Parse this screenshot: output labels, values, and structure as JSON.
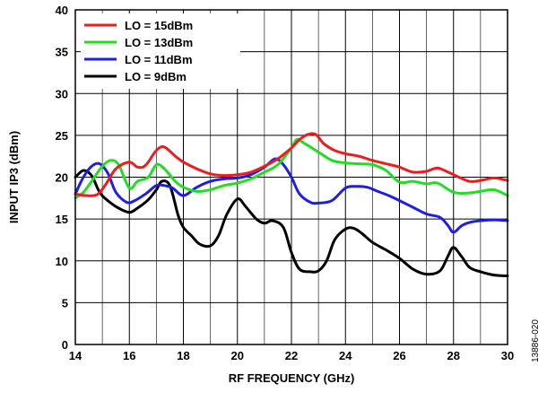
{
  "figure_id": "13886-020",
  "chart_data": {
    "type": "line",
    "title": "",
    "xlabel": "RF FREQUENCY (GHz)",
    "ylabel": "INPUT IP3 (dBm)",
    "xlim": [
      14,
      30
    ],
    "ylim": [
      0,
      40
    ],
    "xticks": [
      14,
      16,
      18,
      20,
      22,
      24,
      26,
      28,
      30
    ],
    "yticks": [
      0,
      5,
      10,
      15,
      20,
      25,
      30,
      35,
      40
    ],
    "grid": true,
    "legend_position": "top-left",
    "series": [
      {
        "name": "LO = 15dBm",
        "color": "#ee1c1c",
        "x": [
          14,
          14.4,
          14.8,
          15.1,
          15.5,
          16,
          16.3,
          16.6,
          17,
          17.3,
          17.7,
          18,
          18.5,
          19,
          19.5,
          20,
          20.5,
          21,
          21.5,
          22,
          22.3,
          22.6,
          22.9,
          23.2,
          23.6,
          24,
          24.5,
          25,
          25.5,
          26,
          26.5,
          27,
          27.4,
          27.8,
          28.2,
          28.6,
          29,
          29.5,
          30
        ],
        "y": [
          18,
          17.8,
          17.9,
          19,
          21,
          21.8,
          21.2,
          21.4,
          23.2,
          23.6,
          22.5,
          21.8,
          21,
          20.4,
          20.2,
          20.3,
          20.6,
          21.3,
          22.2,
          23.5,
          24.5,
          25.1,
          25.1,
          24,
          23.2,
          22.8,
          22.5,
          22,
          21.6,
          21.2,
          20.6,
          20.7,
          21.1,
          20.6,
          20,
          19.5,
          19.6,
          19.9,
          19.6
        ]
      },
      {
        "name": "LO = 13dBm",
        "color": "#22dd22",
        "x": [
          14,
          14.3,
          14.6,
          15,
          15.3,
          15.6,
          16,
          16.3,
          16.7,
          17,
          17.3,
          17.7,
          18,
          18.5,
          19,
          19.5,
          20,
          20.5,
          21,
          21.5,
          22,
          22.2,
          22.5,
          23,
          23.5,
          24,
          24.5,
          25,
          25.5,
          26,
          26.5,
          27,
          27.4,
          28,
          28.5,
          29,
          29.5,
          30
        ],
        "y": [
          17.5,
          18.2,
          19.5,
          21.3,
          22,
          21.5,
          18.7,
          19.5,
          20,
          21.5,
          21,
          19.5,
          18.8,
          18.3,
          18.5,
          19,
          19.3,
          19.8,
          20.6,
          21.5,
          23.5,
          24.5,
          24,
          23,
          22,
          21.7,
          21.6,
          21.5,
          20.8,
          19.4,
          19.5,
          19.2,
          19.3,
          18.2,
          18.1,
          18.3,
          18.5,
          17.8
        ]
      },
      {
        "name": "LO = 11dBm",
        "color": "#1e1ee6",
        "x": [
          14,
          14.3,
          14.6,
          14.9,
          15.2,
          15.5,
          15.9,
          16.2,
          16.6,
          17,
          17.3,
          17.6,
          18,
          18.5,
          19,
          19.5,
          20,
          20.5,
          21,
          21.4,
          21.7,
          22,
          22.3,
          22.7,
          23,
          23.5,
          24,
          24.4,
          24.8,
          25.2,
          25.6,
          26,
          26.5,
          27,
          27.5,
          27.8,
          28,
          28.3,
          28.6,
          29,
          29.5,
          30
        ],
        "y": [
          18,
          20,
          21.3,
          21.6,
          20.5,
          18.2,
          17,
          17.2,
          18,
          19,
          19,
          18.7,
          17.8,
          18.8,
          19.5,
          19.8,
          19.9,
          20.3,
          21.2,
          22.2,
          21.5,
          20,
          18,
          17,
          16.9,
          17.2,
          18.7,
          18.9,
          18.8,
          18.3,
          17.8,
          17.2,
          16.4,
          15.6,
          15.2,
          14.2,
          13.4,
          14.2,
          14.6,
          14.8,
          14.9,
          14.8
        ]
      },
      {
        "name": "LO = 9dBm",
        "color": "#000000",
        "x": [
          14,
          14.3,
          14.6,
          14.9,
          15.2,
          15.6,
          16,
          16.3,
          16.7,
          17,
          17.2,
          17.5,
          17.8,
          18,
          18.3,
          18.6,
          19,
          19.3,
          19.6,
          20,
          20.3,
          20.7,
          21,
          21.3,
          21.7,
          22,
          22.3,
          22.7,
          23,
          23.3,
          23.6,
          24,
          24.3,
          24.6,
          25,
          25.5,
          26,
          26.5,
          27,
          27.5,
          27.8,
          28,
          28.3,
          28.6,
          29,
          29.5,
          30
        ],
        "y": [
          20,
          20.8,
          20.2,
          18.2,
          17.2,
          16.3,
          15.8,
          16.3,
          17.3,
          18.5,
          19.5,
          19,
          15.5,
          14,
          13,
          12,
          11.8,
          13,
          15.5,
          17.4,
          16.5,
          15,
          14.5,
          14.8,
          14,
          11,
          9,
          8.7,
          8.8,
          10,
          12.5,
          13.8,
          13.9,
          13.3,
          12.2,
          11.3,
          10.3,
          9,
          8.4,
          8.8,
          10.6,
          11.6,
          10.5,
          9.2,
          8.7,
          8.3,
          8.2
        ]
      }
    ]
  }
}
